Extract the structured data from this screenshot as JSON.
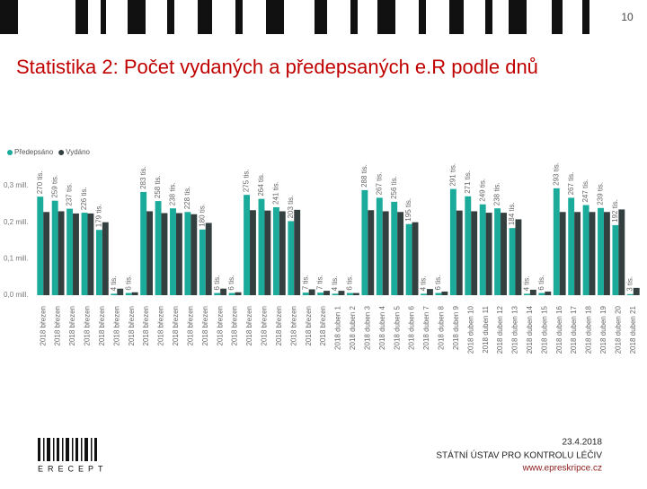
{
  "slide": {
    "page_number": "10",
    "title": "Statistika 2: Počet vydaných a předepsaných e.R podle dnů",
    "date": "23.4.2018",
    "institution": "STÁTNÍ ÚSTAV PRO KONTROLU LÉČIV",
    "website": "www.epreskripce.cz",
    "logo_text": "ERECEPT"
  },
  "chart_data": {
    "type": "bar",
    "grid": false,
    "legend": "top-left",
    "categories": [
      "2018 březen",
      "2018 březen",
      "2018 březen",
      "2018 březen",
      "2018 březen",
      "2018 březen",
      "2018 březen",
      "2018 březen",
      "2018 březen",
      "2018 březen",
      "2018 březen",
      "2018 březen",
      "2018 březen",
      "2018 březen",
      "2018 březen",
      "2018 březen",
      "2018 březen",
      "2018 březen",
      "2018 březen",
      "2018 březen",
      "2018 duben 1",
      "2018 duben 2",
      "2018 duben 3",
      "2018 duben 4",
      "2018 duben 5",
      "2018 duben 6",
      "2018 duben 7",
      "2018 duben 8",
      "2018 duben 9",
      "2018 duben 10",
      "2018 duben 11",
      "2018 duben 12",
      "2018 duben 13",
      "2018 duben 14",
      "2018 duben 15",
      "2018 duben 16",
      "2018 duben 17",
      "2018 duben 18",
      "2018 duben 19",
      "2018 duben 20",
      "2018 duben 21"
    ],
    "series": [
      {
        "name": "Předepsáno",
        "color": "#1aab9b",
        "values": [
          0.27,
          0.259,
          0.237,
          0.226,
          0.179,
          0.004,
          0.006,
          0.283,
          0.258,
          0.238,
          0.228,
          0.18,
          0.006,
          0.006,
          0.275,
          0.264,
          0.241,
          0.203,
          0.007,
          0.007,
          0.004,
          0.006,
          0.288,
          0.267,
          0.256,
          0.195,
          0.004,
          0.006,
          0.291,
          0.271,
          0.249,
          0.238,
          0.184,
          0.004,
          0.006,
          0.293,
          0.267,
          0.247,
          0.239,
          0.192,
          0.003
        ],
        "value_labels": [
          "270 tis.",
          "259 tis.",
          "237 tis.",
          "226 tis.",
          "179 tis.",
          "4 tis.",
          "6 tis.",
          "283 tis.",
          "258 tis.",
          "238 tis.",
          "228 tis.",
          "180 tis.",
          "6 tis.",
          "6 tis.",
          "275 tis.",
          "264 tis.",
          "241 tis.",
          "203 tis.",
          "7 tis.",
          "7 tis.",
          "4 tis.",
          "6 tis.",
          "288 tis.",
          "267 tis.",
          "256 tis.",
          "195 tis.",
          "4 tis.",
          "6 tis.",
          "291 tis.",
          "271 tis.",
          "249 tis.",
          "238 tis.",
          "184 tis.",
          "4 tis.",
          "6 tis.",
          "293 tis.",
          "267 tis.",
          "247 tis.",
          "239 tis.",
          "192 tis.",
          "3 tis."
        ]
      },
      {
        "name": "Vydáno",
        "color": "#34403f",
        "values": [
          0.228,
          0.23,
          0.224,
          0.224,
          0.2,
          0.018,
          0.008,
          0.23,
          0.225,
          0.225,
          0.222,
          0.198,
          0.018,
          0.008,
          0.233,
          0.232,
          0.23,
          0.234,
          0.016,
          0.012,
          0.012,
          0.006,
          0.233,
          0.23,
          0.228,
          0.2,
          0.017,
          0.01,
          0.232,
          0.23,
          0.226,
          0.226,
          0.208,
          0.015,
          0.01,
          0.228,
          0.228,
          0.228,
          0.228,
          0.235,
          0.02
        ]
      }
    ],
    "ylim": [
      0,
      0.3
    ],
    "yticks": [
      {
        "value": 0,
        "label": "0,0 mill."
      },
      {
        "value": 0.1,
        "label": "0,1 mill."
      },
      {
        "value": 0.2,
        "label": "0,2 mill."
      },
      {
        "value": 0.3,
        "label": "0,3 mill."
      }
    ]
  }
}
